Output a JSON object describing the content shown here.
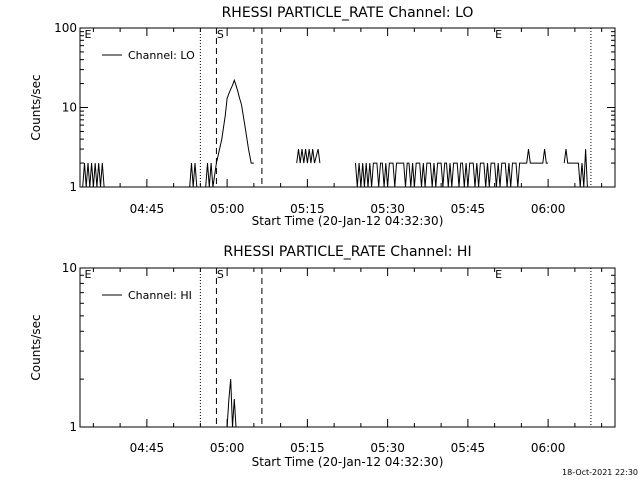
{
  "chart_data": [
    {
      "type": "line",
      "title": "RHESSI PARTICLE_RATE Channel: LO",
      "xlabel": "Start Time (20-Jan-12 04:32:30)",
      "ylabel": "Counts/sec",
      "y_scale": "log",
      "ylim": [
        1,
        100
      ],
      "xlim": [
        "04:32:30",
        "06:12:30"
      ],
      "x_ticks": [
        "04:45",
        "05:00",
        "05:15",
        "05:30",
        "05:45",
        "06:00"
      ],
      "y_ticks": [
        "1",
        "10",
        "100"
      ],
      "legend": {
        "label": "Channel: LO",
        "position": "top-left"
      },
      "markers": {
        "E_left": "E",
        "S": "S",
        "E_right": "E",
        "E_left_time": "04:34:00",
        "E_right_time": "05:50:00",
        "dotted_times": [
          "04:55:00",
          "06:08:00"
        ],
        "dashed_times": [
          "04:58:00",
          "05:06:30"
        ]
      },
      "series": [
        {
          "name": "Channel: LO",
          "color": "#000000",
          "points": [
            [
              "04:33:00",
              1
            ],
            [
              "04:33:20",
              2
            ],
            [
              "04:33:40",
              1
            ],
            [
              "04:34:00",
              2
            ],
            [
              "04:34:20",
              1
            ],
            [
              "04:34:40",
              2
            ],
            [
              "04:35:00",
              1
            ],
            [
              "04:35:20",
              2
            ],
            [
              "04:35:40",
              1
            ],
            [
              "04:36:00",
              2
            ],
            [
              "04:36:20",
              1
            ],
            [
              "04:36:40",
              2
            ],
            [
              "04:37:00",
              1
            ],
            [
              "04:53:00",
              1
            ],
            [
              "04:53:20",
              2
            ],
            [
              "04:53:40",
              1
            ],
            [
              "04:54:00",
              2
            ],
            [
              "04:54:20",
              1
            ],
            [
              "04:56:00",
              1
            ],
            [
              "04:56:20",
              2
            ],
            [
              "04:56:40",
              1
            ],
            [
              "04:57:00",
              2
            ],
            [
              "04:57:20",
              1
            ],
            [
              "04:58:00",
              2
            ],
            [
              "04:59:00",
              4
            ],
            [
              "04:59:40",
              8
            ],
            [
              "05:00:00",
              13
            ],
            [
              "05:00:20",
              15
            ],
            [
              "05:00:40",
              17
            ],
            [
              "05:01:00",
              19
            ],
            [
              "05:01:20",
              22
            ],
            [
              "05:01:40",
              19
            ],
            [
              "05:02:00",
              16
            ],
            [
              "05:02:20",
              13
            ],
            [
              "05:02:40",
              11
            ],
            [
              "05:03:00",
              8
            ],
            [
              "05:03:30",
              5
            ],
            [
              "05:04:00",
              3
            ],
            [
              "05:04:30",
              2
            ],
            [
              "05:05:00",
              2
            ],
            [
              "05:13:00",
              2
            ],
            [
              "05:13:20",
              3
            ],
            [
              "05:13:40",
              2
            ],
            [
              "05:14:00",
              3
            ],
            [
              "05:14:20",
              2
            ],
            [
              "05:14:40",
              3
            ],
            [
              "05:15:00",
              2
            ],
            [
              "05:15:20",
              3
            ],
            [
              "05:15:40",
              2
            ],
            [
              "05:16:00",
              3
            ],
            [
              "05:16:20",
              2
            ],
            [
              "05:17:00",
              3
            ],
            [
              "05:17:20",
              2
            ],
            [
              "05:24:00",
              2
            ],
            [
              "05:24:20",
              1
            ],
            [
              "05:24:40",
              2
            ],
            [
              "05:25:00",
              1
            ],
            [
              "05:25:20",
              2
            ],
            [
              "05:25:40",
              1
            ],
            [
              "05:26:00",
              2
            ],
            [
              "05:26:20",
              1
            ],
            [
              "05:26:40",
              2
            ],
            [
              "05:27:00",
              1
            ],
            [
              "05:27:20",
              2
            ],
            [
              "05:28:00",
              2
            ],
            [
              "05:28:20",
              1
            ],
            [
              "05:28:40",
              2
            ],
            [
              "05:29:00",
              2
            ],
            [
              "05:29:20",
              1
            ],
            [
              "05:29:40",
              2
            ],
            [
              "05:30:00",
              1
            ],
            [
              "05:30:20",
              2
            ],
            [
              "05:31:00",
              2
            ],
            [
              "05:31:20",
              1
            ],
            [
              "05:31:40",
              2
            ],
            [
              "05:33:00",
              2
            ],
            [
              "05:33:20",
              1
            ],
            [
              "05:33:40",
              2
            ],
            [
              "05:34:00",
              2
            ],
            [
              "05:34:20",
              1
            ],
            [
              "05:34:40",
              2
            ],
            [
              "05:35:00",
              1
            ],
            [
              "05:35:20",
              2
            ],
            [
              "05:36:00",
              2
            ],
            [
              "05:36:20",
              1
            ],
            [
              "05:36:40",
              2
            ],
            [
              "05:37:00",
              1
            ],
            [
              "05:37:20",
              2
            ],
            [
              "05:38:00",
              2
            ],
            [
              "05:38:20",
              1
            ],
            [
              "05:38:40",
              2
            ],
            [
              "05:39:00",
              1
            ],
            [
              "05:39:20",
              2
            ],
            [
              "05:40:00",
              2
            ],
            [
              "05:40:20",
              1
            ],
            [
              "05:40:40",
              2
            ],
            [
              "05:41:00",
              2
            ],
            [
              "05:41:20",
              1
            ],
            [
              "05:41:40",
              2
            ],
            [
              "05:42:00",
              1
            ],
            [
              "05:42:20",
              2
            ],
            [
              "05:43:00",
              2
            ],
            [
              "05:43:20",
              1
            ],
            [
              "05:43:40",
              2
            ],
            [
              "05:44:00",
              2
            ],
            [
              "05:44:20",
              1
            ],
            [
              "05:44:40",
              2
            ],
            [
              "05:45:00",
              1
            ],
            [
              "05:45:20",
              2
            ],
            [
              "05:46:00",
              2
            ],
            [
              "05:46:20",
              1
            ],
            [
              "05:46:40",
              2
            ],
            [
              "05:47:00",
              1
            ],
            [
              "05:47:20",
              2
            ],
            [
              "05:48:00",
              2
            ],
            [
              "05:48:20",
              1
            ],
            [
              "05:48:40",
              2
            ],
            [
              "05:49:00",
              1
            ],
            [
              "05:49:20",
              2
            ],
            [
              "05:50:00",
              2
            ],
            [
              "05:50:20",
              1
            ],
            [
              "05:50:40",
              2
            ],
            [
              "05:51:00",
              1
            ],
            [
              "05:51:20",
              2
            ],
            [
              "05:52:00",
              2
            ],
            [
              "05:52:20",
              1
            ],
            [
              "05:52:40",
              2
            ],
            [
              "05:53:00",
              1
            ],
            [
              "05:53:20",
              2
            ],
            [
              "05:54:00",
              2
            ],
            [
              "05:54:20",
              1
            ],
            [
              "05:54:40",
              2
            ],
            [
              "05:55:00",
              2
            ],
            [
              "05:56:00",
              2
            ],
            [
              "05:56:20",
              3
            ],
            [
              "05:56:40",
              2
            ],
            [
              "05:57:00",
              2
            ],
            [
              "05:59:00",
              2
            ],
            [
              "05:59:20",
              3
            ],
            [
              "05:59:40",
              2
            ],
            [
              "06:00:00",
              2
            ],
            [
              "06:03:00",
              2
            ],
            [
              "06:03:20",
              3
            ],
            [
              "06:03:40",
              2
            ],
            [
              "06:05:00",
              2
            ],
            [
              "06:05:20",
              2
            ],
            [
              "06:05:40",
              2
            ],
            [
              "06:06:00",
              1
            ],
            [
              "06:06:20",
              2
            ],
            [
              "06:06:40",
              1
            ],
            [
              "06:07:00",
              3
            ],
            [
              "06:07:20",
              1
            ]
          ]
        }
      ]
    },
    {
      "type": "line",
      "title": "RHESSI PARTICLE_RATE Channel: HI",
      "xlabel": "Start Time (20-Jan-12 04:32:30)",
      "ylabel": "Counts/sec",
      "y_scale": "log",
      "ylim": [
        1,
        10
      ],
      "xlim": [
        "04:32:30",
        "06:12:30"
      ],
      "x_ticks": [
        "04:45",
        "05:00",
        "05:15",
        "05:30",
        "05:45",
        "06:00"
      ],
      "y_ticks": [
        "1",
        "10"
      ],
      "legend": {
        "label": "Channel: HI",
        "position": "top-left"
      },
      "markers": {
        "E_left": "E",
        "S": "S",
        "E_right": "E",
        "E_left_time": "04:34:00",
        "E_right_time": "05:50:00",
        "dotted_times": [
          "04:55:00",
          "06:08:00"
        ],
        "dashed_times": [
          "04:58:00",
          "05:06:30"
        ]
      },
      "series": [
        {
          "name": "Channel: HI",
          "color": "#000000",
          "points": [
            [
              "05:00:00",
              1
            ],
            [
              "05:00:20",
              1.5
            ],
            [
              "05:00:40",
              2
            ],
            [
              "05:01:00",
              1
            ],
            [
              "05:01:20",
              1.5
            ],
            [
              "05:01:40",
              1
            ]
          ]
        }
      ]
    }
  ],
  "footer": {
    "timestamp": "18-Oct-2021 22:30"
  }
}
